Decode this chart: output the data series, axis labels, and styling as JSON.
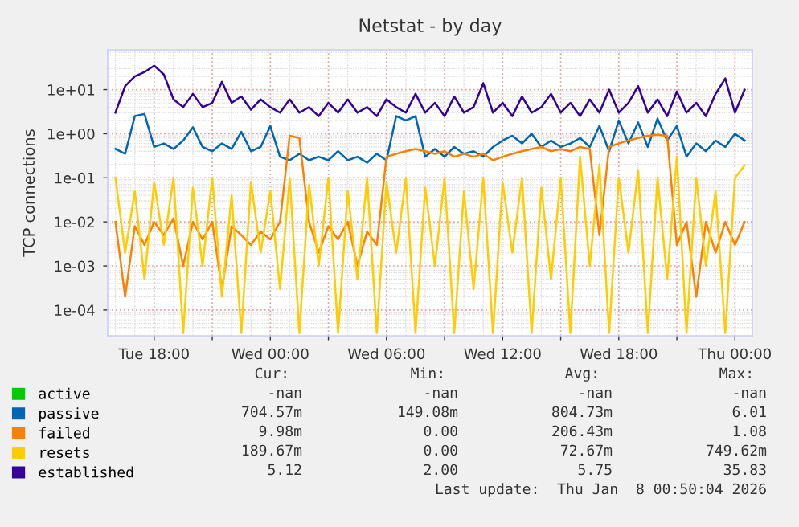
{
  "chart_data": {
    "type": "line",
    "title": "Netstat - by day",
    "ylabel": "TCP connections",
    "x": [
      "2026-01-06T16:00",
      "2026-01-06T16:30",
      "2026-01-06T17:00",
      "2026-01-06T17:30",
      "2026-01-06T18:00",
      "2026-01-06T18:30",
      "2026-01-06T19:00",
      "2026-01-06T19:30",
      "2026-01-06T20:00",
      "2026-01-06T20:30",
      "2026-01-06T21:00",
      "2026-01-06T21:30",
      "2026-01-06T22:00",
      "2026-01-06T22:30",
      "2026-01-06T23:00",
      "2026-01-06T23:30",
      "2026-01-07T00:00",
      "2026-01-07T00:30",
      "2026-01-07T01:00",
      "2026-01-07T01:30",
      "2026-01-07T02:00",
      "2026-01-07T02:30",
      "2026-01-07T03:00",
      "2026-01-07T03:30",
      "2026-01-07T04:00",
      "2026-01-07T04:30",
      "2026-01-07T05:00",
      "2026-01-07T05:30",
      "2026-01-07T06:00",
      "2026-01-07T06:30",
      "2026-01-07T07:00",
      "2026-01-07T07:30",
      "2026-01-07T08:00",
      "2026-01-07T08:30",
      "2026-01-07T09:00",
      "2026-01-07T09:30",
      "2026-01-07T10:00",
      "2026-01-07T10:30",
      "2026-01-07T11:00",
      "2026-01-07T11:30",
      "2026-01-07T12:00",
      "2026-01-07T12:30",
      "2026-01-07T13:00",
      "2026-01-07T13:30",
      "2026-01-07T14:00",
      "2026-01-07T14:30",
      "2026-01-07T15:00",
      "2026-01-07T15:30",
      "2026-01-07T16:00",
      "2026-01-07T16:30",
      "2026-01-07T17:00",
      "2026-01-07T17:30",
      "2026-01-07T18:00",
      "2026-01-07T18:30",
      "2026-01-07T19:00",
      "2026-01-07T19:30",
      "2026-01-07T20:00",
      "2026-01-07T20:30",
      "2026-01-07T21:00",
      "2026-01-07T21:30",
      "2026-01-07T22:00",
      "2026-01-07T22:30",
      "2026-01-07T23:00",
      "2026-01-07T23:30",
      "2026-01-08T00:00",
      "2026-01-08T00:30"
    ],
    "series": [
      {
        "name": "active",
        "color": "#00cc00",
        "values": [
          null,
          null,
          null,
          null,
          null,
          null,
          null,
          null,
          null,
          null,
          null,
          null,
          null,
          null,
          null,
          null,
          null,
          null,
          null,
          null,
          null,
          null,
          null,
          null,
          null,
          null,
          null,
          null,
          null,
          null,
          null,
          null,
          null,
          null,
          null,
          null,
          null,
          null,
          null,
          null,
          null,
          null,
          null,
          null,
          null,
          null,
          null,
          null,
          null,
          null,
          null,
          null,
          null,
          null,
          null,
          null,
          null,
          null,
          null,
          null,
          null,
          null,
          null,
          null,
          null,
          null
        ]
      },
      {
        "name": "passive",
        "color": "#0066b3",
        "values": [
          0.45,
          0.35,
          2.5,
          2.8,
          0.5,
          0.6,
          0.45,
          0.7,
          1.4,
          0.5,
          0.4,
          0.6,
          0.45,
          1.1,
          0.4,
          0.5,
          1.5,
          0.3,
          0.25,
          0.35,
          0.25,
          0.3,
          0.25,
          0.4,
          0.25,
          0.3,
          0.22,
          0.35,
          0.25,
          2.5,
          2.0,
          2.5,
          0.3,
          0.45,
          0.3,
          0.5,
          0.35,
          0.4,
          0.3,
          0.5,
          0.7,
          0.9,
          0.6,
          1.0,
          0.5,
          0.7,
          0.5,
          0.6,
          0.8,
          0.5,
          1.5,
          0.4,
          2.0,
          0.6,
          1.8,
          0.5,
          2.2,
          0.7,
          1.5,
          0.3,
          0.6,
          0.4,
          0.7,
          0.5,
          1.0,
          0.7
        ]
      },
      {
        "name": "failed",
        "color": "#ff8000",
        "values": [
          0.01,
          0.0002,
          0.008,
          0.003,
          0.01,
          0.005,
          0.012,
          0.001,
          0.01,
          0.004,
          0.01,
          0.0003,
          0.008,
          0.005,
          0.003,
          0.006,
          0.004,
          0.01,
          0.9,
          0.8,
          0.01,
          0.002,
          0.008,
          0.004,
          0.01,
          0.001,
          0.006,
          0.003,
          0.3,
          0.35,
          0.4,
          0.45,
          0.4,
          0.35,
          0.4,
          0.3,
          0.35,
          0.3,
          0.35,
          0.25,
          0.3,
          0.35,
          0.4,
          0.45,
          0.5,
          0.4,
          0.45,
          0.4,
          0.5,
          0.45,
          0.005,
          0.5,
          0.6,
          0.7,
          0.8,
          0.9,
          0.95,
          0.9,
          0.003,
          0.01,
          0.0002,
          0.01,
          0.002,
          0.01,
          0.003,
          0.01
        ]
      },
      {
        "name": "resets",
        "color": "#ffcc00",
        "values": [
          0.1,
          0.002,
          0.05,
          0.0005,
          0.08,
          0.003,
          0.1,
          3e-05,
          0.06,
          0.001,
          0.1,
          0.0002,
          0.04,
          3e-05,
          0.08,
          0.002,
          0.05,
          0.0003,
          0.1,
          3e-05,
          0.07,
          0.001,
          0.1,
          3e-05,
          0.05,
          0.0005,
          0.1,
          3e-05,
          0.08,
          0.002,
          0.1,
          3e-05,
          0.06,
          0.001,
          0.1,
          3e-05,
          0.05,
          0.0003,
          0.1,
          3e-05,
          0.08,
          0.002,
          0.1,
          3e-05,
          0.06,
          0.0005,
          0.1,
          3e-05,
          0.3,
          0.001,
          0.2,
          3e-05,
          0.1,
          0.002,
          0.15,
          3e-05,
          0.1,
          0.0005,
          0.3,
          3e-05,
          0.1,
          0.001,
          0.05,
          3e-05,
          0.1,
          0.19
        ]
      },
      {
        "name": "established",
        "color": "#330099",
        "values": [
          3,
          12,
          20,
          25,
          35,
          22,
          6,
          4,
          8,
          4,
          5,
          15,
          5,
          7,
          3.5,
          6,
          4,
          3,
          6,
          3,
          4,
          2.5,
          5,
          3,
          6,
          3,
          4,
          2.5,
          6,
          4,
          3,
          8,
          3,
          5,
          2.5,
          7,
          3,
          4,
          14,
          3,
          5,
          2.5,
          7,
          3,
          4,
          8,
          3,
          5,
          2.5,
          6,
          3,
          10,
          3,
          5,
          12,
          3,
          6,
          2.5,
          9,
          3,
          5,
          2.5,
          8,
          18,
          3,
          10
        ]
      }
    ],
    "log": "y",
    "xlim": [
      "2026-01-06T15:36",
      "2026-01-08T00:54"
    ],
    "ylim": [
      2.6e-05,
      80
    ],
    "xticks": [
      {
        "value": "2026-01-06T18:00",
        "label": "Tue 18:00"
      },
      {
        "value": "2026-01-06T21:00",
        "label": null
      },
      {
        "value": "2026-01-07T00:00",
        "label": "Wed 00:00"
      },
      {
        "value": "2026-01-07T03:00",
        "label": null
      },
      {
        "value": "2026-01-07T06:00",
        "label": "Wed 06:00"
      },
      {
        "value": "2026-01-07T09:00",
        "label": null
      },
      {
        "value": "2026-01-07T12:00",
        "label": "Wed 12:00"
      },
      {
        "value": "2026-01-07T15:00",
        "label": null
      },
      {
        "value": "2026-01-07T18:00",
        "label": "Wed 18:00"
      },
      {
        "value": "2026-01-07T21:00",
        "label": null
      },
      {
        "value": "2026-01-08T00:00",
        "label": "Thu 00:00"
      }
    ],
    "yticks": [
      {
        "value": 0.0001,
        "label": "1e-04"
      },
      {
        "value": 0.001,
        "label": "1e-03"
      },
      {
        "value": 0.01,
        "label": "1e-02"
      },
      {
        "value": 0.1,
        "label": "1e-01"
      },
      {
        "value": 1,
        "label": "1e+00"
      },
      {
        "value": 10,
        "label": "1e+01"
      }
    ],
    "grid": true,
    "legend": "bottom left",
    "marker": "none",
    "line_style": "solid",
    "annotations": [
      "Cur:",
      "Min:",
      "Avg:",
      "Max:",
      "-nan",
      "-nan",
      "-nan",
      "-nan",
      "704.57m",
      "149.08m",
      "804.73m",
      "6.01",
      "9.98m",
      "0.00",
      "206.43m",
      "1.08",
      "189.67m",
      "0.00",
      "72.67m",
      "749.62m",
      "5.12",
      "2.00",
      "5.75",
      "35.83",
      "Last update:  Thu Jan  8 00:50:04 2026"
    ]
  }
}
